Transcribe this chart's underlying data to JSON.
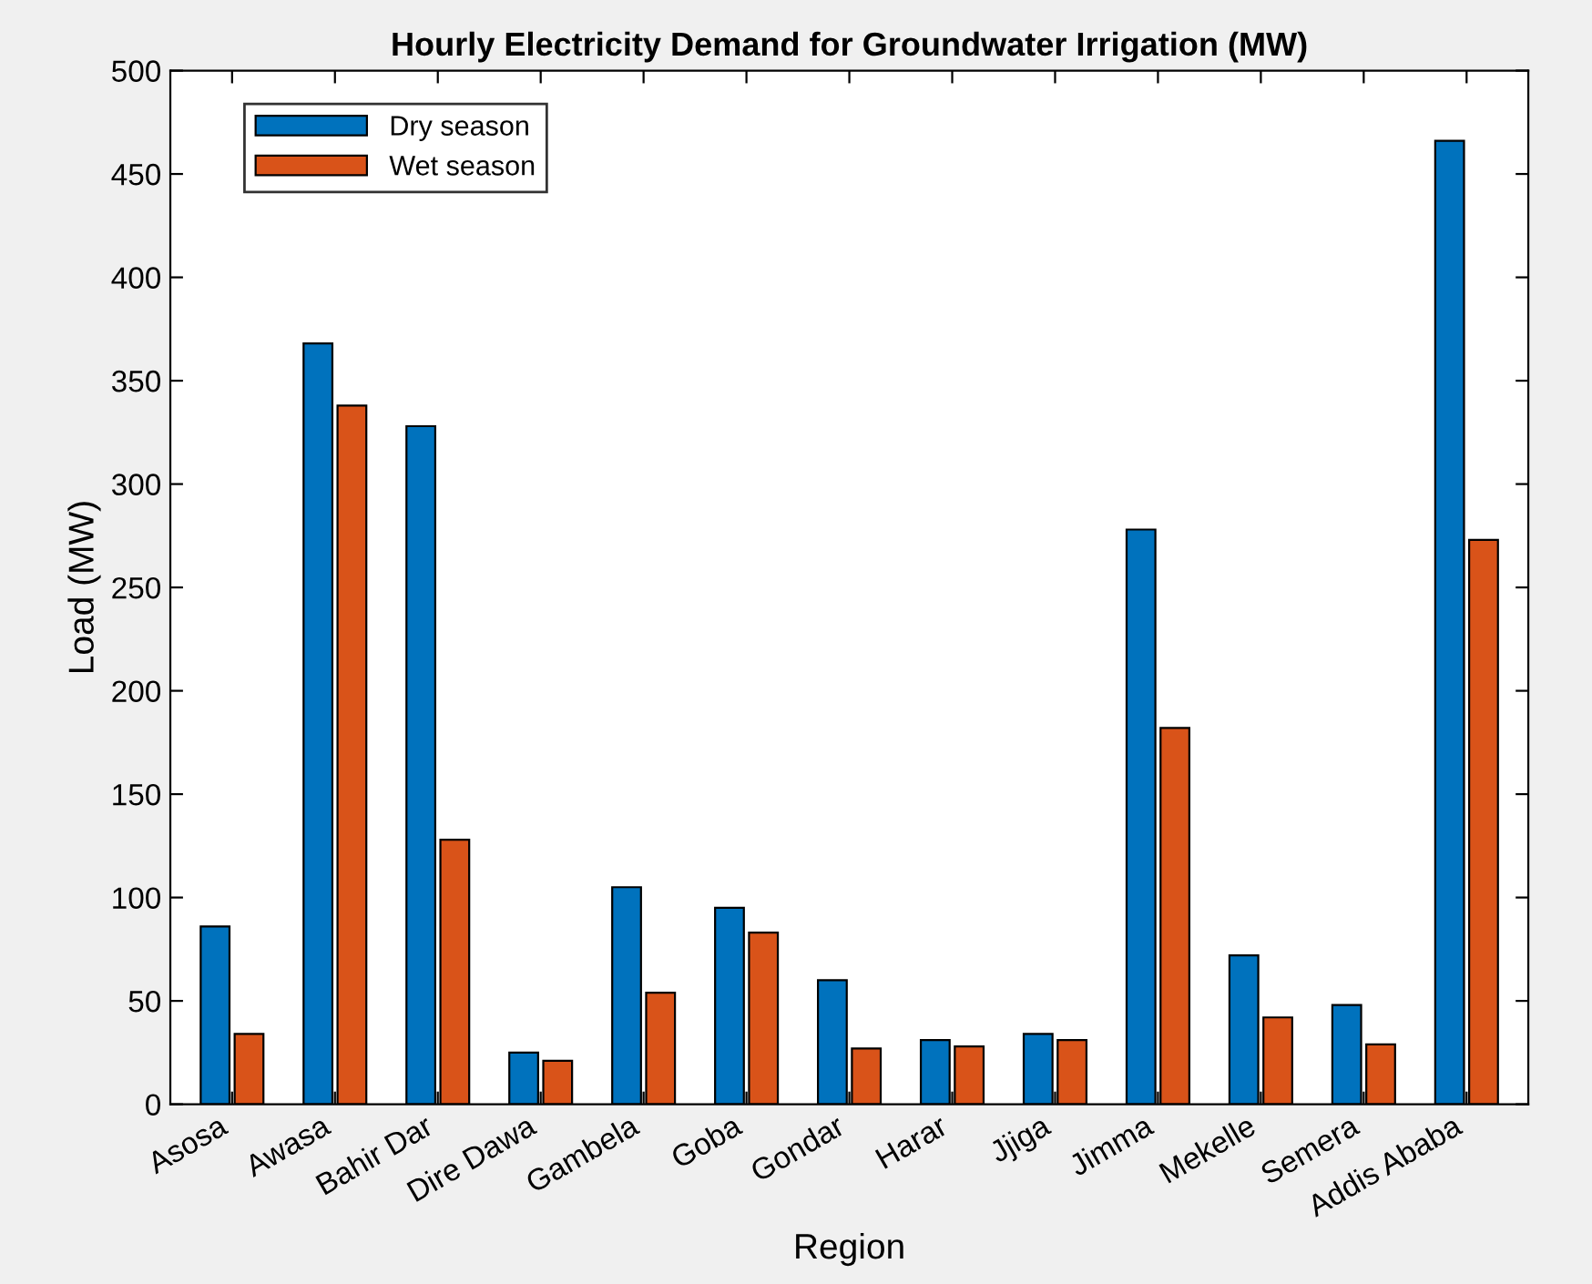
{
  "chart_data": {
    "type": "bar",
    "title": "Hourly Electricity Demand for Groundwater Irrigation (MW)",
    "xlabel": "Region",
    "ylabel": "Load (MW)",
    "categories": [
      "Asosa",
      "Awasa",
      "Bahir Dar",
      "Dire Dawa",
      "Gambela",
      "Goba",
      "Gondar",
      "Harar",
      "Jjiga",
      "Jimma",
      "Mekelle",
      "Semera",
      "Addis Ababa"
    ],
    "series": [
      {
        "name": "Dry season",
        "color": "#0072bd",
        "values": [
          86,
          368,
          328,
          25,
          105,
          95,
          60,
          31,
          34,
          278,
          72,
          48,
          466
        ]
      },
      {
        "name": "Wet season",
        "color": "#d95319",
        "values": [
          34,
          338,
          128,
          21,
          54,
          83,
          27,
          28,
          31,
          182,
          42,
          29,
          273
        ]
      }
    ],
    "ylim": [
      0,
      500
    ],
    "yticks": [
      0,
      50,
      100,
      150,
      200,
      250,
      300,
      350,
      400,
      450,
      500
    ],
    "grid": false,
    "legend": "top left"
  }
}
